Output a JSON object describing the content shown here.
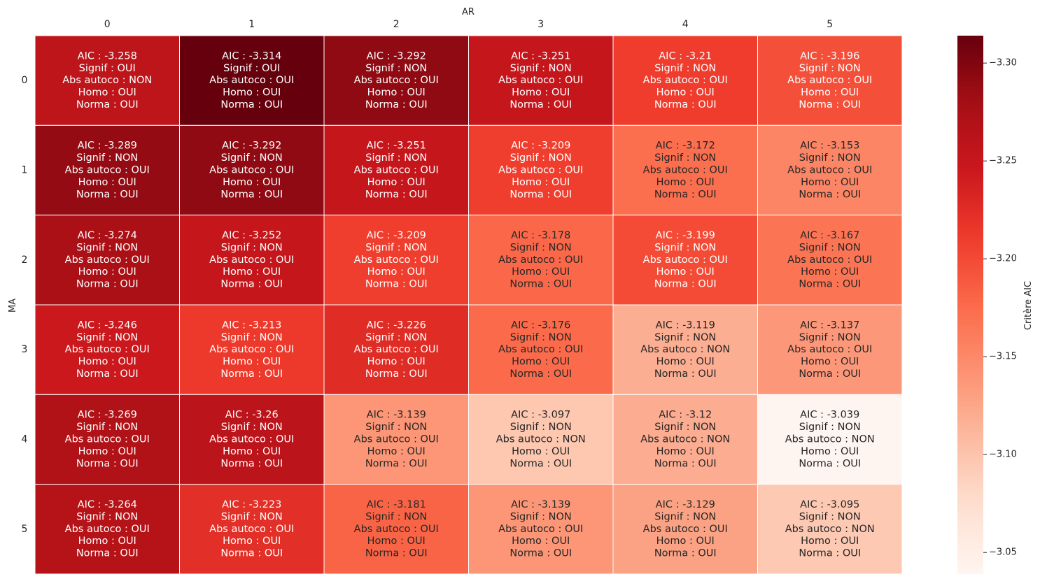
{
  "chart_data": {
    "type": "heatmap",
    "xlabel": "AR",
    "ylabel": "MA",
    "colorbar_label": "Critère AIC",
    "colormap": "Reds_r",
    "colormap_stops": [
      "#fff5f0",
      "#fee0d2",
      "#fcbba1",
      "#fc9272",
      "#fb6a4a",
      "#ef3b2c",
      "#cb181d",
      "#a50f15",
      "#67000d"
    ],
    "grid_color": "#ffffff",
    "light_text_color": "#ffffff",
    "dark_text_color": "#262626",
    "x_categories": [
      "0",
      "1",
      "2",
      "3",
      "4",
      "5"
    ],
    "y_categories": [
      "0",
      "1",
      "2",
      "3",
      "4",
      "5"
    ],
    "vmin": -3.314,
    "vmax": -3.039,
    "colorbar_ticks": [
      "−3.30",
      "−3.25",
      "−3.20",
      "−3.15",
      "−3.10",
      "−3.05"
    ],
    "colorbar_tick_values": [
      -3.3,
      -3.25,
      -3.2,
      -3.15,
      -3.1,
      -3.05
    ],
    "values": [
      [
        -3.258,
        -3.314,
        -3.292,
        -3.251,
        -3.21,
        -3.196
      ],
      [
        -3.289,
        -3.292,
        -3.251,
        -3.209,
        -3.172,
        -3.153
      ],
      [
        -3.274,
        -3.252,
        -3.209,
        -3.178,
        -3.199,
        -3.167
      ],
      [
        -3.246,
        -3.213,
        -3.226,
        -3.176,
        -3.119,
        -3.137
      ],
      [
        -3.269,
        -3.26,
        -3.139,
        -3.097,
        -3.12,
        -3.039
      ],
      [
        -3.264,
        -3.223,
        -3.181,
        -3.139,
        -3.129,
        -3.095
      ]
    ],
    "annotations": [
      [
        [
          "AIC : -3.258",
          "Signif : OUI",
          "Abs autoco : NON",
          "Homo : OUI",
          "Norma : OUI"
        ],
        [
          "AIC : -3.314",
          "Signif : OUI",
          "Abs autoco : OUI",
          "Homo : OUI",
          "Norma : OUI"
        ],
        [
          "AIC : -3.292",
          "Signif : NON",
          "Abs autoco : OUI",
          "Homo : OUI",
          "Norma : OUI"
        ],
        [
          "AIC : -3.251",
          "Signif : NON",
          "Abs autoco : OUI",
          "Homo : OUI",
          "Norma : OUI"
        ],
        [
          "AIC : -3.21",
          "Signif : NON",
          "Abs autoco : OUI",
          "Homo : OUI",
          "Norma : OUI"
        ],
        [
          "AIC : -3.196",
          "Signif : NON",
          "Abs autoco : OUI",
          "Homo : OUI",
          "Norma : OUI"
        ]
      ],
      [
        [
          "AIC : -3.289",
          "Signif : NON",
          "Abs autoco : OUI",
          "Homo : OUI",
          "Norma : OUI"
        ],
        [
          "AIC : -3.292",
          "Signif : NON",
          "Abs autoco : OUI",
          "Homo : OUI",
          "Norma : OUI"
        ],
        [
          "AIC : -3.251",
          "Signif : NON",
          "Abs autoco : OUI",
          "Homo : OUI",
          "Norma : OUI"
        ],
        [
          "AIC : -3.209",
          "Signif : NON",
          "Abs autoco : OUI",
          "Homo : OUI",
          "Norma : OUI"
        ],
        [
          "AIC : -3.172",
          "Signif : NON",
          "Abs autoco : OUI",
          "Homo : OUI",
          "Norma : OUI"
        ],
        [
          "AIC : -3.153",
          "Signif : NON",
          "Abs autoco : OUI",
          "Homo : OUI",
          "Norma : OUI"
        ]
      ],
      [
        [
          "AIC : -3.274",
          "Signif : NON",
          "Abs autoco : OUI",
          "Homo : OUI",
          "Norma : OUI"
        ],
        [
          "AIC : -3.252",
          "Signif : NON",
          "Abs autoco : OUI",
          "Homo : OUI",
          "Norma : OUI"
        ],
        [
          "AIC : -3.209",
          "Signif : NON",
          "Abs autoco : OUI",
          "Homo : OUI",
          "Norma : OUI"
        ],
        [
          "AIC : -3.178",
          "Signif : NON",
          "Abs autoco : OUI",
          "Homo : OUI",
          "Norma : OUI"
        ],
        [
          "AIC : -3.199",
          "Signif : NON",
          "Abs autoco : OUI",
          "Homo : OUI",
          "Norma : OUI"
        ],
        [
          "AIC : -3.167",
          "Signif : NON",
          "Abs autoco : OUI",
          "Homo : OUI",
          "Norma : OUI"
        ]
      ],
      [
        [
          "AIC : -3.246",
          "Signif : NON",
          "Abs autoco : OUI",
          "Homo : OUI",
          "Norma : OUI"
        ],
        [
          "AIC : -3.213",
          "Signif : NON",
          "Abs autoco : OUI",
          "Homo : OUI",
          "Norma : OUI"
        ],
        [
          "AIC : -3.226",
          "Signif : NON",
          "Abs autoco : OUI",
          "Homo : OUI",
          "Norma : OUI"
        ],
        [
          "AIC : -3.176",
          "Signif : NON",
          "Abs autoco : OUI",
          "Homo : OUI",
          "Norma : OUI"
        ],
        [
          "AIC : -3.119",
          "Signif : NON",
          "Abs autoco : NON",
          "Homo : OUI",
          "Norma : OUI"
        ],
        [
          "AIC : -3.137",
          "Signif : NON",
          "Abs autoco : OUI",
          "Homo : OUI",
          "Norma : OUI"
        ]
      ],
      [
        [
          "AIC : -3.269",
          "Signif : NON",
          "Abs autoco : OUI",
          "Homo : OUI",
          "Norma : OUI"
        ],
        [
          "AIC : -3.26",
          "Signif : NON",
          "Abs autoco : OUI",
          "Homo : OUI",
          "Norma : OUI"
        ],
        [
          "AIC : -3.139",
          "Signif : NON",
          "Abs autoco : OUI",
          "Homo : OUI",
          "Norma : OUI"
        ],
        [
          "AIC : -3.097",
          "Signif : NON",
          "Abs autoco : NON",
          "Homo : OUI",
          "Norma : OUI"
        ],
        [
          "AIC : -3.12",
          "Signif : NON",
          "Abs autoco : NON",
          "Homo : OUI",
          "Norma : OUI"
        ],
        [
          "AIC : -3.039",
          "Signif : NON",
          "Abs autoco : NON",
          "Homo : OUI",
          "Norma : OUI"
        ]
      ],
      [
        [
          "AIC : -3.264",
          "Signif : NON",
          "Abs autoco : OUI",
          "Homo : OUI",
          "Norma : OUI"
        ],
        [
          "AIC : -3.223",
          "Signif : NON",
          "Abs autoco : OUI",
          "Homo : OUI",
          "Norma : OUI"
        ],
        [
          "AIC : -3.181",
          "Signif : NON",
          "Abs autoco : OUI",
          "Homo : OUI",
          "Norma : OUI"
        ],
        [
          "AIC : -3.139",
          "Signif : NON",
          "Abs autoco : OUI",
          "Homo : OUI",
          "Norma : OUI"
        ],
        [
          "AIC : -3.129",
          "Signif : NON",
          "Abs autoco : OUI",
          "Homo : OUI",
          "Norma : OUI"
        ],
        [
          "AIC : -3.095",
          "Signif : NON",
          "Abs autoco : NON",
          "Homo : OUI",
          "Norma : OUI"
        ]
      ]
    ]
  }
}
